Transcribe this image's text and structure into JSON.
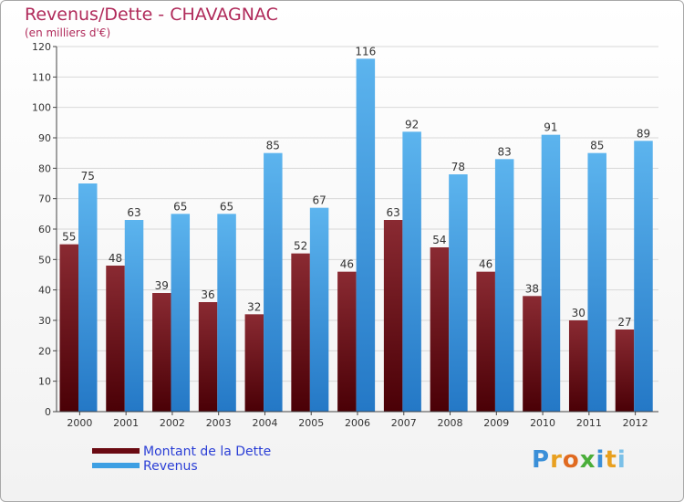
{
  "header": {
    "title": "Revenus/Dette - CHAVAGNAC",
    "subtitle": "(en milliers d'€)"
  },
  "legend": {
    "items": [
      {
        "label": "Montant de la Dette",
        "color": "#6a0a12"
      },
      {
        "label": "Revenus",
        "color": "#3d9fe3"
      }
    ]
  },
  "logo": {
    "text": "Proxiti",
    "letters": [
      {
        "char": "P",
        "color": "#3a8fd8"
      },
      {
        "char": "r",
        "color": "#e8a020"
      },
      {
        "char": "o",
        "color": "#e06a20"
      },
      {
        "char": "x",
        "color": "#4aae3a"
      },
      {
        "char": "i",
        "color": "#3a8fd8"
      },
      {
        "char": "t",
        "color": "#e8a020"
      },
      {
        "char": "i",
        "color": "#7ac0e8"
      }
    ]
  },
  "chart_data": {
    "type": "bar",
    "title": "Revenus/Dette - CHAVAGNAC",
    "subtitle": "(en milliers d'€)",
    "xlabel": "",
    "ylabel": "",
    "ylim": [
      0,
      120
    ],
    "yticks": [
      0,
      10,
      20,
      30,
      40,
      50,
      60,
      70,
      80,
      90,
      100,
      110,
      120
    ],
    "grid": true,
    "legend_position": "bottom-left",
    "categories": [
      "2000",
      "2001",
      "2002",
      "2003",
      "2004",
      "2005",
      "2006",
      "2007",
      "2008",
      "2009",
      "2010",
      "2011",
      "2012"
    ],
    "series": [
      {
        "name": "Montant de la Dette",
        "color": "#6a0a12",
        "values": [
          55,
          48,
          39,
          36,
          32,
          52,
          46,
          63,
          54,
          46,
          38,
          30,
          27
        ]
      },
      {
        "name": "Revenus",
        "color": "#3d9fe3",
        "values": [
          75,
          63,
          65,
          65,
          85,
          67,
          116,
          92,
          78,
          83,
          91,
          85,
          89
        ]
      }
    ]
  }
}
